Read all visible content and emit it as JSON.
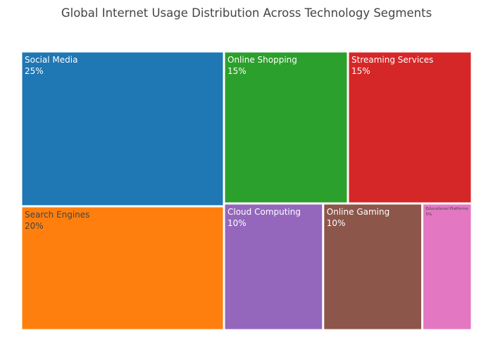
{
  "chart_data": {
    "type": "treemap",
    "title": "Global Internet Usage Distribution Across Technology Segments",
    "segments": [
      {
        "name": "Social Media",
        "value": 25,
        "label": "25%",
        "color": "#1f77b4",
        "text_color": "#ffffff"
      },
      {
        "name": "Search Engines",
        "value": 20,
        "label": "20%",
        "color": "#ff7f0e",
        "text_color": "#444444"
      },
      {
        "name": "Online Shopping",
        "value": 15,
        "label": "15%",
        "color": "#2ca02c",
        "text_color": "#ffffff"
      },
      {
        "name": "Streaming Services",
        "value": 15,
        "label": "15%",
        "color": "#d62728",
        "text_color": "#ffffff"
      },
      {
        "name": "Cloud Computing",
        "value": 10,
        "label": "10%",
        "color": "#9467bd",
        "text_color": "#ffffff"
      },
      {
        "name": "Online Gaming",
        "value": 10,
        "label": "10%",
        "color": "#8c564b",
        "text_color": "#ffffff"
      },
      {
        "name": "Educational Platforms",
        "value": 5,
        "label": "5%",
        "color": "#e377c2",
        "text_color": "#444444"
      }
    ]
  }
}
